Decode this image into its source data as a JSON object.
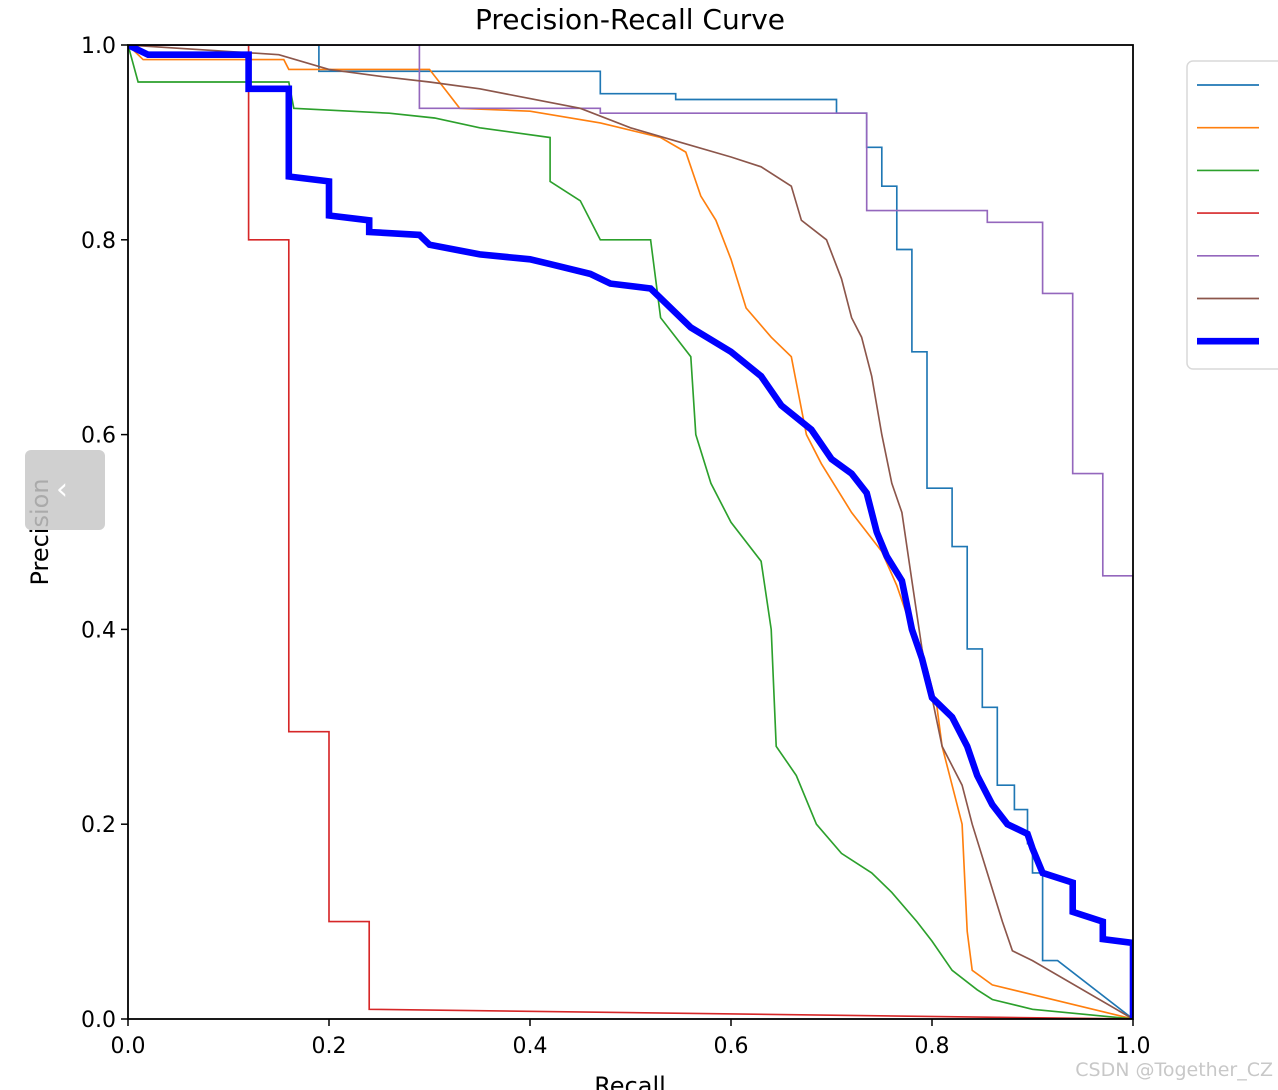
{
  "chart_data": {
    "type": "line",
    "title": "Precision-Recall Curve",
    "xlabel": "Recall",
    "ylabel": "Precision",
    "xlim": [
      0,
      1
    ],
    "ylim": [
      0,
      1
    ],
    "xticks": [
      "0.0",
      "0.2",
      "0.4",
      "0.6",
      "0.8",
      "1.0"
    ],
    "yticks": [
      "0.0",
      "0.2",
      "0.4",
      "0.6",
      "0.8",
      "1.0"
    ],
    "grid": false,
    "legend_position": "outside-right",
    "series": [
      {
        "name": "",
        "color": "#1f77b4",
        "width": 1.5,
        "points": [
          [
            0,
            1
          ],
          [
            0.19,
            1
          ],
          [
            0.19,
            0.973
          ],
          [
            0.47,
            0.973
          ],
          [
            0.47,
            0.95
          ],
          [
            0.545,
            0.95
          ],
          [
            0.545,
            0.944
          ],
          [
            0.705,
            0.944
          ],
          [
            0.705,
            0.93
          ],
          [
            0.735,
            0.93
          ],
          [
            0.735,
            0.895
          ],
          [
            0.75,
            0.895
          ],
          [
            0.75,
            0.855
          ],
          [
            0.765,
            0.855
          ],
          [
            0.765,
            0.79
          ],
          [
            0.78,
            0.79
          ],
          [
            0.78,
            0.685
          ],
          [
            0.795,
            0.685
          ],
          [
            0.795,
            0.545
          ],
          [
            0.82,
            0.545
          ],
          [
            0.82,
            0.485
          ],
          [
            0.835,
            0.485
          ],
          [
            0.835,
            0.38
          ],
          [
            0.85,
            0.38
          ],
          [
            0.85,
            0.32
          ],
          [
            0.865,
            0.32
          ],
          [
            0.865,
            0.24
          ],
          [
            0.882,
            0.24
          ],
          [
            0.882,
            0.215
          ],
          [
            0.895,
            0.215
          ],
          [
            0.895,
            0.18
          ],
          [
            0.9,
            0.18
          ],
          [
            0.9,
            0.15
          ],
          [
            0.91,
            0.15
          ],
          [
            0.91,
            0.06
          ],
          [
            0.925,
            0.06
          ],
          [
            1,
            0
          ]
        ]
      },
      {
        "name": "",
        "color": "#ff7f0e",
        "width": 1.5,
        "points": [
          [
            0,
            1
          ],
          [
            0.015,
            0.985
          ],
          [
            0.155,
            0.985
          ],
          [
            0.16,
            0.975
          ],
          [
            0.3,
            0.975
          ],
          [
            0.315,
            0.955
          ],
          [
            0.33,
            0.935
          ],
          [
            0.4,
            0.932
          ],
          [
            0.47,
            0.92
          ],
          [
            0.53,
            0.905
          ],
          [
            0.555,
            0.89
          ],
          [
            0.57,
            0.845
          ],
          [
            0.585,
            0.82
          ],
          [
            0.6,
            0.78
          ],
          [
            0.615,
            0.73
          ],
          [
            0.64,
            0.7
          ],
          [
            0.66,
            0.68
          ],
          [
            0.675,
            0.6
          ],
          [
            0.69,
            0.57
          ],
          [
            0.72,
            0.52
          ],
          [
            0.75,
            0.48
          ],
          [
            0.765,
            0.445
          ],
          [
            0.78,
            0.4
          ],
          [
            0.795,
            0.36
          ],
          [
            0.805,
            0.32
          ],
          [
            0.81,
            0.28
          ],
          [
            0.82,
            0.24
          ],
          [
            0.83,
            0.2
          ],
          [
            0.835,
            0.09
          ],
          [
            0.84,
            0.05
          ],
          [
            0.86,
            0.035
          ],
          [
            1,
            0
          ]
        ]
      },
      {
        "name": "",
        "color": "#2ca02c",
        "width": 1.5,
        "points": [
          [
            0,
            1
          ],
          [
            0.01,
            0.962
          ],
          [
            0.16,
            0.962
          ],
          [
            0.165,
            0.935
          ],
          [
            0.26,
            0.93
          ],
          [
            0.305,
            0.925
          ],
          [
            0.35,
            0.915
          ],
          [
            0.42,
            0.905
          ],
          [
            0.42,
            0.86
          ],
          [
            0.45,
            0.84
          ],
          [
            0.47,
            0.8
          ],
          [
            0.52,
            0.8
          ],
          [
            0.53,
            0.72
          ],
          [
            0.56,
            0.68
          ],
          [
            0.565,
            0.6
          ],
          [
            0.58,
            0.55
          ],
          [
            0.6,
            0.51
          ],
          [
            0.63,
            0.47
          ],
          [
            0.64,
            0.4
          ],
          [
            0.645,
            0.28
          ],
          [
            0.665,
            0.25
          ],
          [
            0.685,
            0.2
          ],
          [
            0.71,
            0.17
          ],
          [
            0.74,
            0.15
          ],
          [
            0.76,
            0.13
          ],
          [
            0.785,
            0.1
          ],
          [
            0.8,
            0.08
          ],
          [
            0.82,
            0.05
          ],
          [
            0.845,
            0.03
          ],
          [
            0.86,
            0.02
          ],
          [
            0.9,
            0.01
          ],
          [
            1,
            0
          ]
        ]
      },
      {
        "name": "",
        "color": "#d62728",
        "width": 1.5,
        "points": [
          [
            0,
            1
          ],
          [
            0.12,
            1
          ],
          [
            0.12,
            0.8
          ],
          [
            0.16,
            0.8
          ],
          [
            0.16,
            0.295
          ],
          [
            0.2,
            0.295
          ],
          [
            0.2,
            0.1
          ],
          [
            0.24,
            0.1
          ],
          [
            0.24,
            0.01
          ],
          [
            1,
            0
          ]
        ]
      },
      {
        "name": "",
        "color": "#9467bd",
        "width": 1.5,
        "points": [
          [
            0,
            1
          ],
          [
            0.29,
            1
          ],
          [
            0.29,
            0.935
          ],
          [
            0.47,
            0.935
          ],
          [
            0.47,
            0.93
          ],
          [
            0.735,
            0.93
          ],
          [
            0.735,
            0.83
          ],
          [
            0.855,
            0.83
          ],
          [
            0.855,
            0.818
          ],
          [
            0.91,
            0.818
          ],
          [
            0.91,
            0.745
          ],
          [
            0.94,
            0.745
          ],
          [
            0.94,
            0.56
          ],
          [
            0.97,
            0.56
          ],
          [
            0.97,
            0.455
          ],
          [
            1,
            0.455
          ],
          [
            1,
            0
          ]
        ]
      },
      {
        "name": "",
        "color": "#8c564b",
        "width": 1.5,
        "points": [
          [
            0,
            1
          ],
          [
            0.15,
            0.99
          ],
          [
            0.2,
            0.975
          ],
          [
            0.25,
            0.968
          ],
          [
            0.3,
            0.962
          ],
          [
            0.35,
            0.955
          ],
          [
            0.4,
            0.945
          ],
          [
            0.45,
            0.935
          ],
          [
            0.5,
            0.915
          ],
          [
            0.55,
            0.9
          ],
          [
            0.6,
            0.885
          ],
          [
            0.63,
            0.875
          ],
          [
            0.66,
            0.855
          ],
          [
            0.67,
            0.82
          ],
          [
            0.695,
            0.8
          ],
          [
            0.71,
            0.76
          ],
          [
            0.72,
            0.72
          ],
          [
            0.73,
            0.7
          ],
          [
            0.74,
            0.66
          ],
          [
            0.75,
            0.6
          ],
          [
            0.76,
            0.55
          ],
          [
            0.77,
            0.52
          ],
          [
            0.78,
            0.45
          ],
          [
            0.79,
            0.38
          ],
          [
            0.8,
            0.33
          ],
          [
            0.81,
            0.28
          ],
          [
            0.83,
            0.24
          ],
          [
            0.84,
            0.2
          ],
          [
            0.855,
            0.15
          ],
          [
            0.87,
            0.1
          ],
          [
            0.88,
            0.07
          ],
          [
            0.9,
            0.06
          ],
          [
            1,
            0
          ]
        ]
      },
      {
        "name": "",
        "color": "#0000ff",
        "width": 6,
        "points": [
          [
            0,
            1
          ],
          [
            0.02,
            0.99
          ],
          [
            0.12,
            0.99
          ],
          [
            0.12,
            0.955
          ],
          [
            0.16,
            0.955
          ],
          [
            0.16,
            0.865
          ],
          [
            0.2,
            0.86
          ],
          [
            0.2,
            0.825
          ],
          [
            0.24,
            0.82
          ],
          [
            0.24,
            0.808
          ],
          [
            0.29,
            0.805
          ],
          [
            0.3,
            0.795
          ],
          [
            0.35,
            0.785
          ],
          [
            0.4,
            0.78
          ],
          [
            0.42,
            0.775
          ],
          [
            0.46,
            0.765
          ],
          [
            0.48,
            0.755
          ],
          [
            0.52,
            0.75
          ],
          [
            0.54,
            0.73
          ],
          [
            0.56,
            0.71
          ],
          [
            0.6,
            0.685
          ],
          [
            0.63,
            0.66
          ],
          [
            0.65,
            0.63
          ],
          [
            0.68,
            0.605
          ],
          [
            0.7,
            0.575
          ],
          [
            0.72,
            0.56
          ],
          [
            0.735,
            0.54
          ],
          [
            0.745,
            0.5
          ],
          [
            0.755,
            0.475
          ],
          [
            0.77,
            0.45
          ],
          [
            0.78,
            0.4
          ],
          [
            0.79,
            0.37
          ],
          [
            0.8,
            0.33
          ],
          [
            0.82,
            0.31
          ],
          [
            0.835,
            0.28
          ],
          [
            0.845,
            0.25
          ],
          [
            0.86,
            0.22
          ],
          [
            0.875,
            0.2
          ],
          [
            0.895,
            0.19
          ],
          [
            0.9,
            0.175
          ],
          [
            0.91,
            0.15
          ],
          [
            0.94,
            0.14
          ],
          [
            0.94,
            0.11
          ],
          [
            0.97,
            0.1
          ],
          [
            0.97,
            0.082
          ],
          [
            1,
            0.078
          ],
          [
            1,
            0
          ]
        ]
      }
    ]
  },
  "ui": {
    "collapse_tab_glyph": "‹",
    "watermark": "CSDN @Together_CZ"
  }
}
